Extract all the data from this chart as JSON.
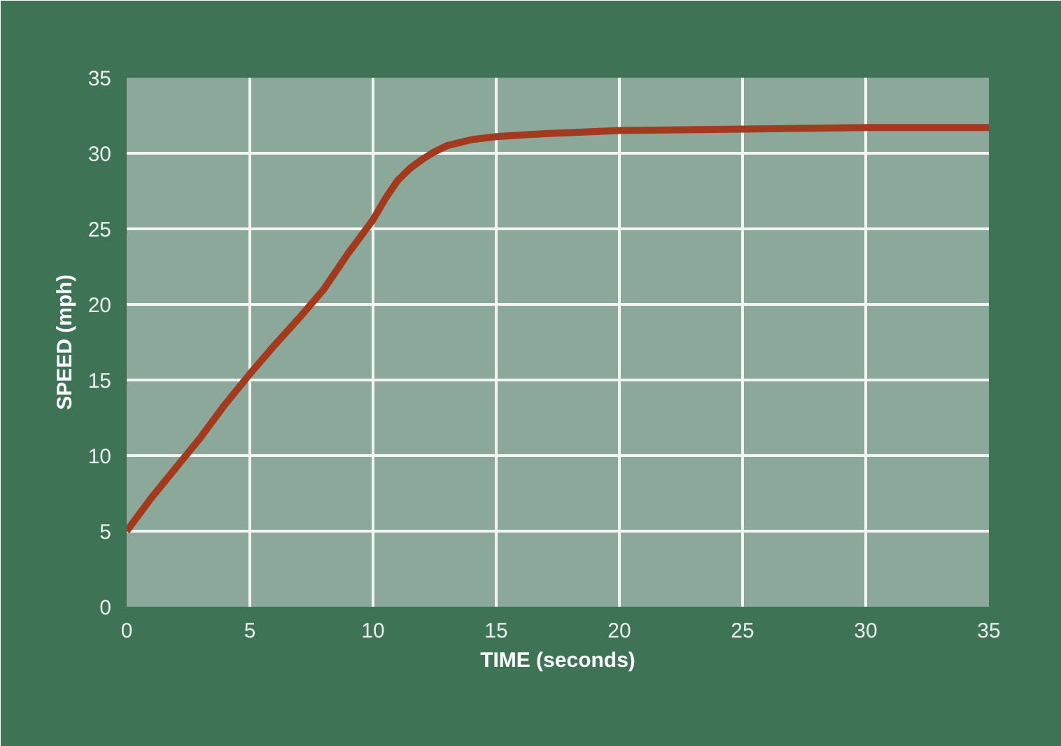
{
  "chart_data": {
    "type": "line",
    "xlabel": "TIME (seconds)",
    "ylabel": "SPEED (mph)",
    "x": [
      0,
      1,
      2,
      3,
      4,
      5,
      6,
      7,
      8,
      9,
      10,
      10.5,
      11,
      11.5,
      12,
      12.5,
      13,
      14,
      15,
      17,
      20,
      25,
      30,
      35
    ],
    "series": [
      {
        "color": "#a3391d",
        "values": [
          5,
          7.2,
          9.2,
          11.2,
          13.4,
          15.4,
          17.3,
          19.1,
          21,
          23.4,
          25.6,
          27,
          28.2,
          29,
          29.6,
          30.1,
          30.5,
          30.9,
          31.1,
          31.3,
          31.5,
          31.6,
          31.7,
          31.7
        ]
      }
    ],
    "xlim": [
      0,
      35
    ],
    "ylim": [
      0,
      35
    ],
    "xticks": [
      0,
      5,
      10,
      15,
      20,
      25,
      30,
      35
    ],
    "yticks": [
      0,
      5,
      10,
      15,
      20,
      25,
      30,
      35
    ],
    "grid": true
  }
}
